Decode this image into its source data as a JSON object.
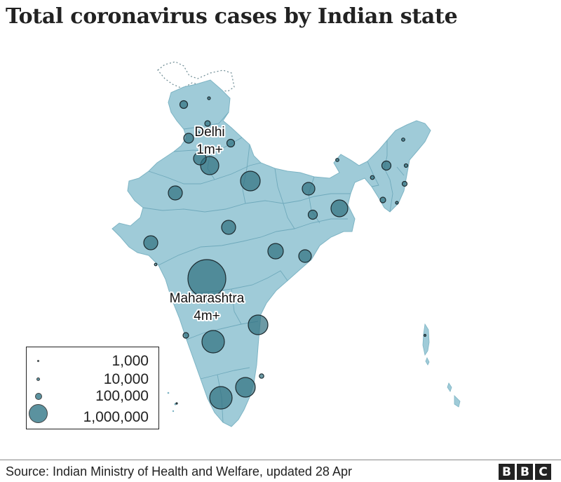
{
  "title": "Total coronavirus cases by Indian state",
  "source": "Source: Indian Ministry of Health and Welfare, updated 28 Apr",
  "logo": [
    "B",
    "B",
    "C"
  ],
  "colors": {
    "land": "#9fcbd8",
    "border": "#5fa3b6",
    "bubble": "#2f6f7f",
    "bubble_stroke": "#1d2b30"
  },
  "labels": {
    "delhi": {
      "name": "Delhi",
      "value": "1m+"
    },
    "maharashtra": {
      "name": "Maharashtra",
      "value": "4m+"
    }
  },
  "legend": [
    {
      "label": "1,000",
      "cases": 1000
    },
    {
      "label": "10,000",
      "cases": 10000
    },
    {
      "label": "100,000",
      "cases": 100000
    },
    {
      "label": "1,000,000",
      "cases": 1000000
    }
  ]
}
